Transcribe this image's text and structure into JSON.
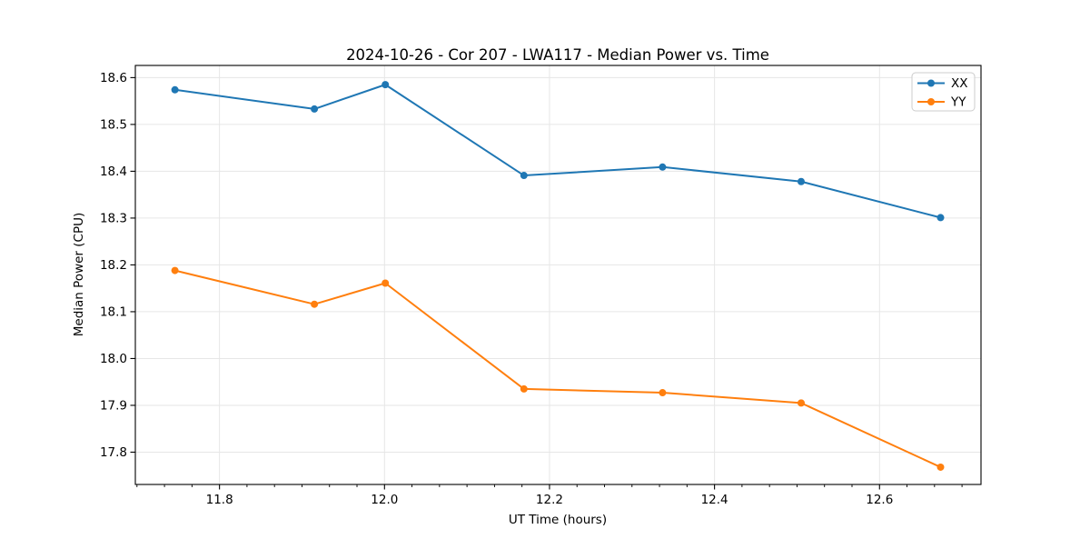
{
  "chart_data": {
    "type": "line",
    "title": "2024-10-26 - Cor 207 - LWA117 - Median Power vs. Time",
    "xlabel": "UT Time (hours)",
    "ylabel": "Median Power (CPU)",
    "x": [
      11.746,
      11.915,
      12.001,
      12.169,
      12.337,
      12.505,
      12.674
    ],
    "series": [
      {
        "name": "XX",
        "color": "#1f77b4",
        "marker": "circle",
        "values": [
          18.574,
          18.533,
          18.585,
          18.391,
          18.409,
          18.378,
          18.301
        ]
      },
      {
        "name": "YY",
        "color": "#ff7f0e",
        "marker": "circle",
        "values": [
          18.188,
          18.116,
          18.161,
          17.935,
          17.927,
          17.905,
          17.768
        ]
      }
    ],
    "xlim": [
      11.698,
      12.723
    ],
    "ylim": [
      17.731,
      18.626
    ],
    "xticks": [
      11.8,
      12.0,
      12.2,
      12.4,
      12.6
    ],
    "yticks": [
      17.8,
      17.9,
      18.0,
      18.1,
      18.2,
      18.3,
      18.4,
      18.5,
      18.6
    ],
    "x_minor_step": 0.0333333,
    "x_tick_decimals": 1,
    "y_tick_decimals": 1,
    "grid": true,
    "legend_position": "top-right",
    "colors": {
      "grid": "#e6e6e6",
      "spine": "#000000",
      "background": "#ffffff",
      "legend_border": "#cccccc"
    }
  }
}
